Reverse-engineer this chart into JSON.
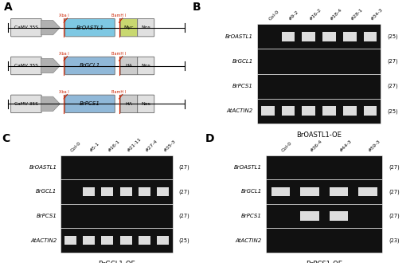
{
  "panel_A_label": "A",
  "panel_B_label": "B",
  "panel_C_label": "C",
  "panel_D_label": "D",
  "constructs": [
    {
      "gene": "BrOASTL1",
      "tag": "Myc",
      "tag_color": "#c8d870",
      "gene_color": "#7ec8e3"
    },
    {
      "gene": "BrGCL1",
      "tag": "HA",
      "tag_color": "#cccccc",
      "gene_color": "#90b8d8"
    },
    {
      "gene": "BrPCS1",
      "tag": "HA",
      "tag_color": "#cccccc",
      "gene_color": "#90b8d8"
    }
  ],
  "panel_B": {
    "title": "BrOASTL1-OE",
    "samples": [
      "Col-0",
      "#9-2",
      "#16-2",
      "#18-4",
      "#28-1",
      "#34-3"
    ],
    "genes": [
      "BrOASTL1",
      "BrGCL1",
      "BrPCS1",
      "AtACTIN2"
    ],
    "cycles": [
      "(25)",
      "(27)",
      "(27)",
      "(25)"
    ],
    "bands": {
      "BrOASTL1": [
        0,
        1,
        1,
        1,
        1,
        1
      ],
      "BrGCL1": [
        0,
        0,
        0,
        0,
        0,
        0
      ],
      "BrPCS1": [
        0,
        0,
        0,
        0,
        0,
        0
      ],
      "AtACTIN2": [
        1,
        1,
        1,
        1,
        1,
        1
      ]
    }
  },
  "panel_C": {
    "title": "BrGCL1-OE",
    "samples": [
      "Col-0",
      "#5-1",
      "#16-1",
      "#21-11",
      "#27-4",
      "#35-3"
    ],
    "genes": [
      "BrOASTL1",
      "BrGCL1",
      "BrPCS1",
      "AtACTIN2"
    ],
    "cycles": [
      "(27)",
      "(27)",
      "(27)",
      "(25)"
    ],
    "bands": {
      "BrOASTL1": [
        0,
        0,
        0,
        0,
        0,
        0
      ],
      "BrGCL1": [
        0,
        1,
        1,
        1,
        1,
        1
      ],
      "BrPCS1": [
        0,
        0,
        0,
        0,
        0,
        0
      ],
      "AtACTIN2": [
        1,
        1,
        1,
        1,
        1,
        1
      ]
    }
  },
  "panel_D": {
    "title": "BrPCS1-OE",
    "samples": [
      "Col-0",
      "#36-4",
      "#44-3",
      "#59-3"
    ],
    "genes": [
      "BrOASTL1",
      "BrGCL1",
      "BrPCS1",
      "AtACTIN2"
    ],
    "cycles": [
      "(27)",
      "(27)",
      "(27)",
      "(23)"
    ],
    "bands": {
      "BrOASTL1": [
        0,
        0,
        0,
        0
      ],
      "BrGCL1": [
        1,
        1,
        1,
        1
      ],
      "BrPCS1": [
        0,
        1,
        1,
        0
      ],
      "AtACTIN2": [
        0,
        0,
        0,
        0
      ]
    }
  },
  "bg_color": "#ffffff",
  "gel_bg": "#111111",
  "band_color": "#dddddd",
  "label_color_red": "#cc2200",
  "arrow_gray": "#b0b0b0",
  "box_border": "#666666"
}
